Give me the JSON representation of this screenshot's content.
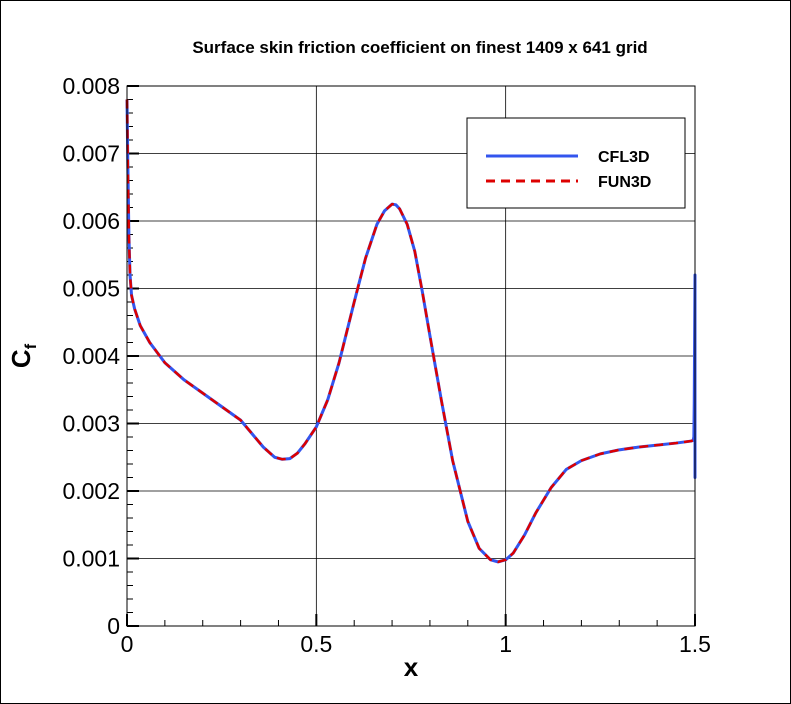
{
  "chart_data": {
    "type": "line",
    "title": "Surface skin friction coefficient on finest 1409 x 641 grid",
    "xlabel": "x",
    "ylabel": {
      "main": "C",
      "sub": "f"
    },
    "xlim": [
      0,
      1.5
    ],
    "ylim": [
      0,
      0.008
    ],
    "x_ticks": [
      0,
      0.5,
      1,
      1.5
    ],
    "x_tick_labels": [
      "0",
      "0.5",
      "1",
      "1.5"
    ],
    "y_ticks": [
      0,
      0.001,
      0.002,
      0.003,
      0.004,
      0.005,
      0.006,
      0.007,
      0.008
    ],
    "y_tick_labels": [
      "0",
      "0.001",
      "0.002",
      "0.003",
      "0.004",
      "0.005",
      "0.006",
      "0.007",
      "0.008"
    ],
    "grid": true,
    "legend": "top-right",
    "series": [
      {
        "name": "CFL3D",
        "color": "#3355ee",
        "style": "solid",
        "x": [
          0,
          0.002,
          0.005,
          0.008,
          0.012,
          0.02,
          0.035,
          0.06,
          0.1,
          0.15,
          0.2,
          0.25,
          0.3,
          0.33,
          0.36,
          0.39,
          0.41,
          0.43,
          0.45,
          0.47,
          0.5,
          0.53,
          0.56,
          0.6,
          0.63,
          0.66,
          0.68,
          0.7,
          0.71,
          0.72,
          0.74,
          0.76,
          0.78,
          0.8,
          0.83,
          0.86,
          0.9,
          0.93,
          0.96,
          0.98,
          1.0,
          1.02,
          1.05,
          1.08,
          1.12,
          1.16,
          1.2,
          1.25,
          1.3,
          1.35,
          1.4,
          1.45,
          1.49,
          1.495,
          1.497,
          1.498,
          1.5,
          1.5,
          1.5
        ],
        "y": [
          0.0078,
          0.0069,
          0.0058,
          0.0052,
          0.0049,
          0.0047,
          0.00445,
          0.0042,
          0.0039,
          0.00365,
          0.00345,
          0.00325,
          0.00305,
          0.00285,
          0.00265,
          0.0025,
          0.00247,
          0.00248,
          0.00256,
          0.0027,
          0.00295,
          0.00335,
          0.0039,
          0.0048,
          0.00545,
          0.00595,
          0.00615,
          0.00625,
          0.00624,
          0.00618,
          0.00595,
          0.00555,
          0.00495,
          0.0043,
          0.00335,
          0.00245,
          0.00155,
          0.00115,
          0.00098,
          0.00095,
          0.00098,
          0.00108,
          0.00135,
          0.00168,
          0.00205,
          0.00232,
          0.00245,
          0.00255,
          0.00261,
          0.00265,
          0.00268,
          0.00271,
          0.00274,
          0.00275,
          0.0028,
          0.0033,
          0.0052,
          0.0022,
          0.0027
        ]
      },
      {
        "name": "FUN3D",
        "color": "#dd0000",
        "style": "dashed",
        "x": [
          0,
          0.002,
          0.005,
          0.008,
          0.012,
          0.02,
          0.035,
          0.06,
          0.1,
          0.15,
          0.2,
          0.25,
          0.3,
          0.33,
          0.36,
          0.39,
          0.41,
          0.43,
          0.45,
          0.47,
          0.5,
          0.53,
          0.56,
          0.6,
          0.63,
          0.66,
          0.68,
          0.7,
          0.71,
          0.72,
          0.74,
          0.76,
          0.78,
          0.8,
          0.83,
          0.86,
          0.9,
          0.93,
          0.96,
          0.98,
          1.0,
          1.02,
          1.05,
          1.08,
          1.12,
          1.16,
          1.2,
          1.25,
          1.3,
          1.35,
          1.4,
          1.45,
          1.49,
          1.495,
          1.5
        ],
        "y": [
          0.0078,
          0.0069,
          0.0058,
          0.0052,
          0.0049,
          0.0047,
          0.00445,
          0.0042,
          0.0039,
          0.00365,
          0.00345,
          0.00325,
          0.00305,
          0.00285,
          0.00265,
          0.0025,
          0.00247,
          0.00248,
          0.00256,
          0.0027,
          0.00295,
          0.00335,
          0.0039,
          0.0048,
          0.00545,
          0.00595,
          0.00615,
          0.00625,
          0.00624,
          0.00618,
          0.00595,
          0.00555,
          0.00495,
          0.0043,
          0.00335,
          0.00245,
          0.00155,
          0.00115,
          0.00098,
          0.00095,
          0.00098,
          0.00108,
          0.00135,
          0.00168,
          0.00205,
          0.00232,
          0.00245,
          0.00255,
          0.00261,
          0.00265,
          0.00268,
          0.00271,
          0.00274,
          0.00275,
          0.0028
        ]
      }
    ]
  }
}
